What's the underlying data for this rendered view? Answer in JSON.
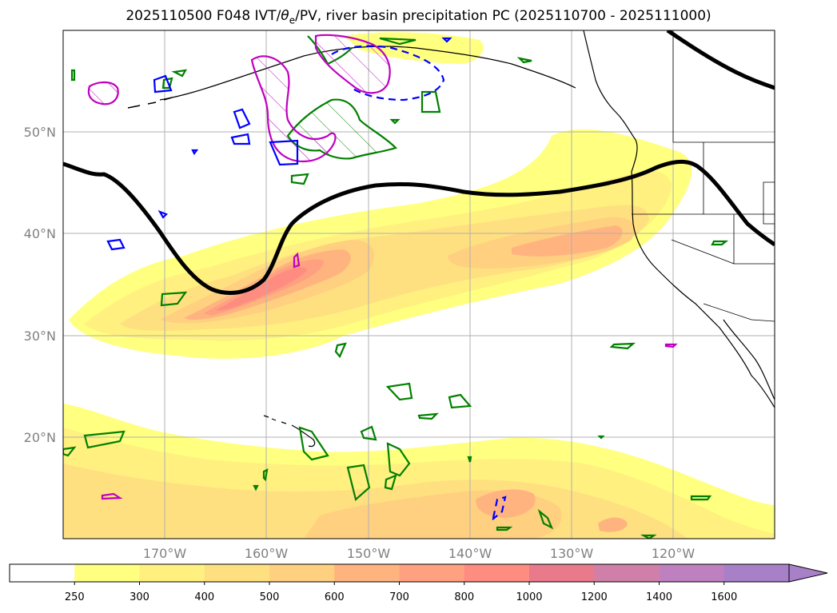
{
  "title": {
    "prefix": "2025110500 F048 IVT/",
    "theta": "θ",
    "theta_sub": "e",
    "suffix": "/PV, river basin precipitation PC (2025110700 - 2025111000)"
  },
  "map": {
    "extent": {
      "lon_min": -180,
      "lon_max": -110,
      "lat_min": 10,
      "lat_max": 60
    },
    "lon_ticks": [
      {
        "value": -170,
        "label": "170°W"
      },
      {
        "value": -160,
        "label": "160°W"
      },
      {
        "value": -150,
        "label": "150°W"
      },
      {
        "value": -140,
        "label": "140°W"
      },
      {
        "value": -130,
        "label": "130°W"
      },
      {
        "value": -120,
        "label": "120°W"
      }
    ],
    "lat_ticks": [
      {
        "value": 20,
        "label": "20°N"
      },
      {
        "value": 30,
        "label": "30°N"
      },
      {
        "value": 40,
        "label": "40°N"
      },
      {
        "value": 50,
        "label": "50°N"
      }
    ],
    "colors": {
      "grid": "#b0b0b0",
      "pv_line": "#000000",
      "green_contour": "#008000",
      "magenta_contour": "#bf00bf",
      "blue_contour": "#0000ff",
      "coast": "#000000"
    }
  },
  "colorbar": {
    "labels": [
      "250",
      "300",
      "400",
      "500",
      "600",
      "700",
      "800",
      "1000",
      "1200",
      "1400",
      "1600"
    ],
    "colors": [
      "#ffffff",
      "#ffff80",
      "#fff080",
      "#ffe080",
      "#ffd080",
      "#ffb480",
      "#ffa080",
      "#ff8c80",
      "#e87a8c",
      "#d080a8",
      "#bf80c0",
      "#a880c8"
    ]
  }
}
